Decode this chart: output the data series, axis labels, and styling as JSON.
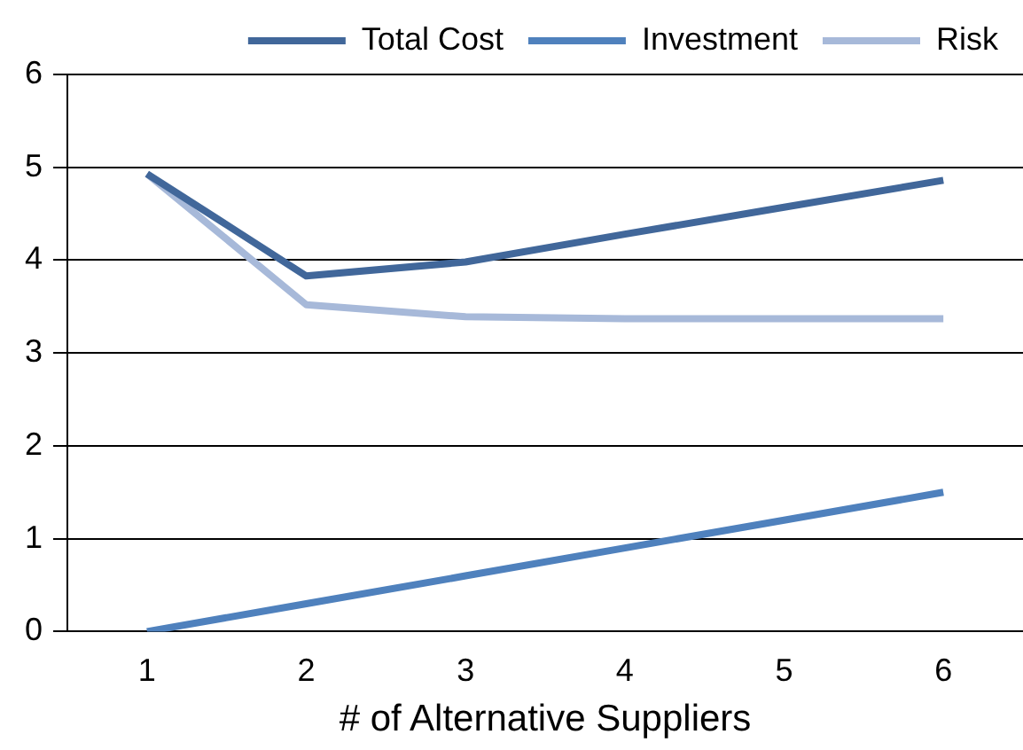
{
  "chart_data": {
    "type": "line",
    "xlabel": "# of Alternative Suppliers",
    "categories": [
      "1",
      "2",
      "3",
      "4",
      "5",
      "6"
    ],
    "series": [
      {
        "name": "Total Cost",
        "color": "#41679a",
        "values": [
          4.93,
          3.83,
          3.98,
          4.28,
          4.57,
          4.86
        ]
      },
      {
        "name": "Investment",
        "color": "#4f81bd",
        "values": [
          0,
          0.3,
          0.6,
          0.9,
          1.2,
          1.5
        ]
      },
      {
        "name": "Risk",
        "color": "#a7b9d9",
        "values": [
          4.93,
          3.52,
          3.39,
          3.37,
          3.37,
          3.37
        ]
      }
    ],
    "ylim": [
      0,
      6
    ],
    "yticks": [
      0,
      1,
      2,
      3,
      4,
      5,
      6
    ],
    "grid": "y",
    "legend": "top",
    "marker": "none",
    "line_style": "solid"
  }
}
